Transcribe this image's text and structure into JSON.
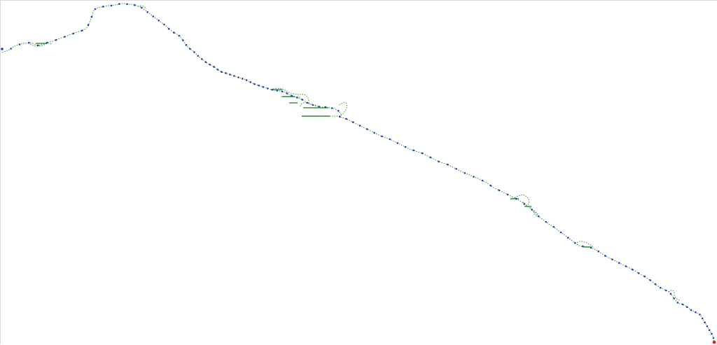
{
  "map": {
    "background_color": "#ffffff",
    "border_color": "#d9d9d9",
    "route_color": "#2e8b3a",
    "route_style": "dotted",
    "waypoint_color": "#1f3fb5",
    "start_marker_color": "#1f3fb5",
    "end_marker_color": "#e02020",
    "waypoint_count": 120,
    "labels_legible": false
  }
}
